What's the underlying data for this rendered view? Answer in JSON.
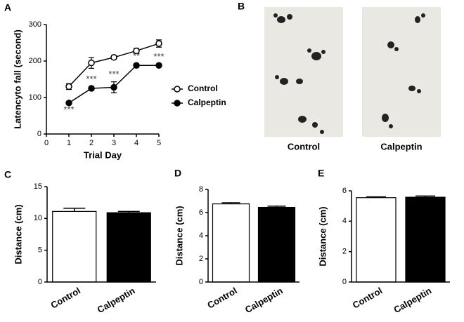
{
  "panel_labels": [
    "A",
    "B",
    "C",
    "D",
    "E"
  ],
  "footprints": {
    "labels": [
      "Control",
      "Calpeptin"
    ]
  },
  "chart_data": [
    {
      "type": "line",
      "xlabel": "Trial Day",
      "ylabel": "Latencyto fall (second)",
      "x": [
        1,
        2,
        3,
        4,
        5
      ],
      "xlim": [
        0,
        5
      ],
      "xticks": [
        0,
        1,
        2,
        3,
        4,
        5
      ],
      "ylim": [
        0,
        300
      ],
      "yticks": [
        0,
        100,
        200,
        300
      ],
      "series": [
        {
          "name": "Control",
          "color": "#ffffff",
          "values": [
            130,
            195,
            210,
            228,
            248
          ],
          "errors": [
            8,
            15,
            5,
            7,
            10
          ]
        },
        {
          "name": "Calpeptin",
          "color": "#000000",
          "values": [
            85,
            125,
            128,
            188,
            188
          ],
          "errors": [
            3,
            5,
            15,
            5,
            3
          ]
        }
      ],
      "annotations": [
        "***",
        "***",
        "***",
        "**",
        "***"
      ]
    },
    {
      "type": "bar",
      "ylabel": "Distance (cm)",
      "categories": [
        "Control",
        "Calpeptin"
      ],
      "values": [
        11.1,
        10.9
      ],
      "errors": [
        0.5,
        0.2
      ],
      "colors": [
        "#ffffff",
        "#000000"
      ],
      "ylim": [
        0,
        15
      ],
      "yticks": [
        0,
        5,
        10,
        15
      ]
    },
    {
      "type": "bar",
      "ylabel": "Distance (cm)",
      "categories": [
        "Control",
        "Calpeptin"
      ],
      "values": [
        6.75,
        6.45
      ],
      "errors": [
        0.1,
        0.1
      ],
      "colors": [
        "#ffffff",
        "#000000"
      ],
      "ylim": [
        0,
        8
      ],
      "yticks": [
        0,
        2,
        4,
        6,
        8
      ]
    },
    {
      "type": "bar",
      "ylabel": "Distance (cm)",
      "categories": [
        "Control",
        "Calpeptin"
      ],
      "values": [
        5.55,
        5.58
      ],
      "errors": [
        0.05,
        0.08
      ],
      "colors": [
        "#ffffff",
        "#000000"
      ],
      "ylim": [
        0,
        6
      ],
      "yticks": [
        0,
        2,
        4,
        6
      ]
    }
  ]
}
